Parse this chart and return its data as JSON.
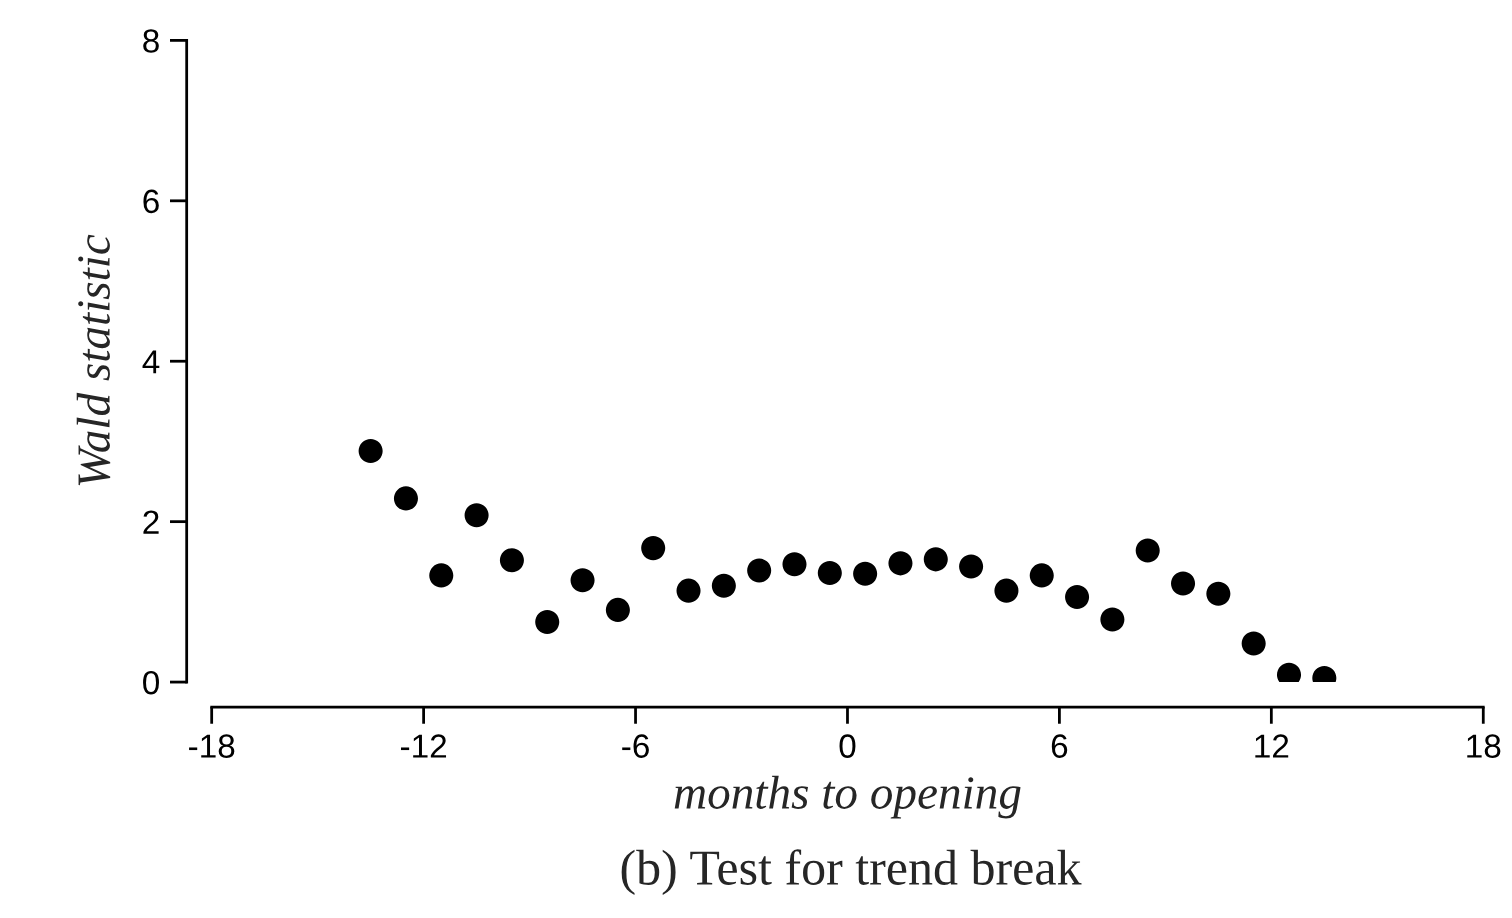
{
  "chart_data": {
    "type": "scatter",
    "title": "(b) Test for trend break",
    "xlabel": "months to opening",
    "ylabel": "Wald statistic",
    "x": [
      -13.5,
      -12.5,
      -11.5,
      -10.5,
      -9.5,
      -8.5,
      -7.5,
      -6.5,
      -5.5,
      -4.5,
      -3.5,
      -2.5,
      -1.5,
      -0.5,
      0.5,
      1.5,
      2.5,
      3.5,
      4.5,
      5.5,
      6.5,
      7.5,
      8.5,
      9.5,
      10.5,
      11.5,
      12.5,
      13.5
    ],
    "series": [
      {
        "color": "#000000",
        "values": [
          2.88,
          2.29,
          1.33,
          2.08,
          1.52,
          0.75,
          1.27,
          0.9,
          1.67,
          1.14,
          1.2,
          1.39,
          1.47,
          1.36,
          1.35,
          1.48,
          1.53,
          1.44,
          1.14,
          1.33,
          1.06,
          0.78,
          1.64,
          1.23,
          1.1,
          0.48,
          0.09,
          0.05
        ]
      }
    ],
    "xlim": [
      -18,
      18
    ],
    "xticks": [
      -18,
      -12,
      -6,
      0,
      6,
      12,
      18
    ],
    "ylim": [
      0,
      8
    ],
    "yticks": [
      0,
      2,
      4,
      6,
      8
    ],
    "marker": "circle",
    "grid": false,
    "legend": false
  }
}
